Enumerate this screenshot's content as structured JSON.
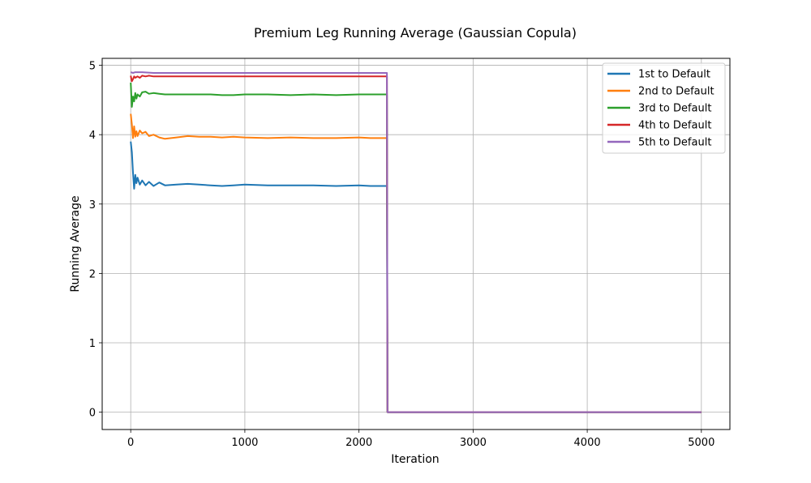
{
  "chart_data": {
    "type": "line",
    "title": "Premium Leg Running Average (Gaussian Copula)",
    "xlabel": "Iteration",
    "ylabel": "Running Average",
    "xlim": [
      -250,
      5250
    ],
    "ylim": [
      -0.25,
      5.1
    ],
    "xticks": [
      0,
      1000,
      2000,
      3000,
      4000,
      5000
    ],
    "yticks": [
      0,
      1,
      2,
      3,
      4,
      5
    ],
    "grid": true,
    "legend_position": "top-right",
    "series": [
      {
        "name": "1st to Default",
        "color": "#1f77b4",
        "x": [
          0,
          10,
          20,
          30,
          40,
          50,
          60,
          80,
          100,
          130,
          160,
          200,
          250,
          300,
          400,
          500,
          600,
          700,
          800,
          900,
          1000,
          1200,
          1400,
          1600,
          1800,
          2000,
          2100,
          2240,
          2245,
          2250,
          5000
        ],
        "y": [
          3.9,
          3.75,
          3.45,
          3.22,
          3.42,
          3.3,
          3.38,
          3.28,
          3.34,
          3.27,
          3.32,
          3.26,
          3.31,
          3.27,
          3.28,
          3.29,
          3.28,
          3.27,
          3.26,
          3.27,
          3.28,
          3.27,
          3.27,
          3.27,
          3.26,
          3.27,
          3.26,
          3.26,
          3.26,
          0.0,
          0.0
        ]
      },
      {
        "name": "2nd to Default",
        "color": "#ff7f0e",
        "x": [
          0,
          10,
          20,
          30,
          40,
          50,
          60,
          80,
          100,
          130,
          160,
          200,
          250,
          300,
          400,
          500,
          600,
          700,
          800,
          900,
          1000,
          1200,
          1400,
          1600,
          1800,
          2000,
          2100,
          2240,
          2245,
          2250,
          5000
        ],
        "y": [
          4.3,
          4.15,
          3.95,
          4.12,
          3.97,
          4.05,
          3.98,
          4.06,
          4.02,
          4.04,
          3.98,
          4.0,
          3.96,
          3.94,
          3.96,
          3.98,
          3.97,
          3.97,
          3.96,
          3.97,
          3.96,
          3.95,
          3.96,
          3.95,
          3.95,
          3.96,
          3.95,
          3.95,
          3.95,
          0.0,
          0.0
        ]
      },
      {
        "name": "3rd to Default",
        "color": "#2ca02c",
        "x": [
          0,
          10,
          20,
          30,
          40,
          50,
          60,
          80,
          100,
          130,
          160,
          200,
          250,
          300,
          400,
          500,
          600,
          700,
          800,
          900,
          1000,
          1200,
          1400,
          1600,
          1800,
          2000,
          2100,
          2240,
          2245,
          2250,
          5000
        ],
        "y": [
          4.75,
          4.4,
          4.55,
          4.48,
          4.6,
          4.52,
          4.58,
          4.55,
          4.61,
          4.62,
          4.59,
          4.6,
          4.59,
          4.58,
          4.58,
          4.58,
          4.58,
          4.58,
          4.57,
          4.57,
          4.58,
          4.58,
          4.57,
          4.58,
          4.57,
          4.58,
          4.58,
          4.58,
          4.58,
          0.0,
          0.0
        ]
      },
      {
        "name": "4th to Default",
        "color": "#d62728",
        "x": [
          0,
          10,
          20,
          30,
          40,
          50,
          60,
          80,
          100,
          130,
          160,
          200,
          300,
          400,
          600,
          800,
          1000,
          1400,
          1800,
          2240,
          2245,
          2250,
          5000
        ],
        "y": [
          4.85,
          4.77,
          4.8,
          4.84,
          4.82,
          4.83,
          4.84,
          4.82,
          4.85,
          4.84,
          4.85,
          4.84,
          4.84,
          4.84,
          4.84,
          4.84,
          4.84,
          4.84,
          4.84,
          4.84,
          4.84,
          0.0,
          0.0
        ]
      },
      {
        "name": "5th to Default",
        "color": "#9467bd",
        "x": [
          0,
          20,
          40,
          100,
          200,
          400,
          1000,
          2000,
          2240,
          2245,
          2250,
          5000
        ],
        "y": [
          4.9,
          4.89,
          4.9,
          4.9,
          4.89,
          4.89,
          4.89,
          4.89,
          4.89,
          4.89,
          0.0,
          0.0
        ]
      }
    ]
  }
}
